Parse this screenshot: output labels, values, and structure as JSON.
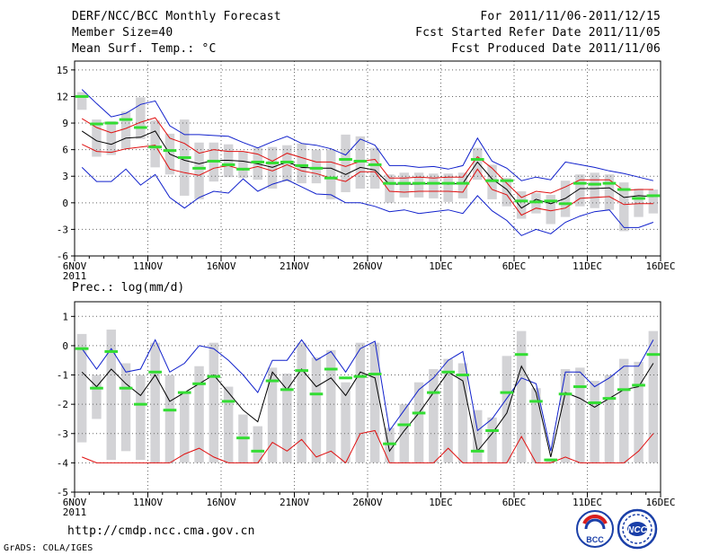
{
  "header": {
    "title": "DERF/NCC/BCC Monthly Forecast",
    "member_size": "Member Size=40",
    "variable": "Mean Surf. Temp.: °C",
    "forecast_period": "For 2011/11/06-2011/12/15",
    "refer_date": "Fcst Started Refer Date 2011/11/05",
    "produced_date": "Fcst Produced Date 2011/11/06"
  },
  "footer": {
    "url": "http://cmdp.ncc.cma.gov.cn",
    "grads": "GrADS: COLA/IGES"
  },
  "logos": {
    "left": "BCC",
    "right": "NCC"
  },
  "colors": {
    "box": "#d3d3d6",
    "mean": "#000000",
    "spread": "#e01010",
    "extreme": "#1020cc",
    "median": "#33dd33",
    "grid": "#666666"
  },
  "chart_data": [
    {
      "type": "line",
      "title": "Mean Surf. Temp.: °C",
      "x": [
        "6NOV",
        "7NOV",
        "8NOV",
        "9NOV",
        "10NOV",
        "11NOV",
        "12NOV",
        "13NOV",
        "14NOV",
        "15NOV",
        "16NOV",
        "17NOV",
        "18NOV",
        "19NOV",
        "20NOV",
        "21NOV",
        "22NOV",
        "23NOV",
        "24NOV",
        "25NOV",
        "26NOV",
        "27NOV",
        "28NOV",
        "29NOV",
        "30NOV",
        "1DEC",
        "2DEC",
        "3DEC",
        "4DEC",
        "5DEC",
        "6DEC",
        "7DEC",
        "8DEC",
        "9DEC",
        "10DEC",
        "11DEC",
        "12DEC",
        "13DEC",
        "14DEC",
        "15DEC"
      ],
      "xticks": [
        "6NOV",
        "11NOV",
        "16NOV",
        "21NOV",
        "26NOV",
        "1DEC",
        "6DEC",
        "11DEC",
        "16DEC"
      ],
      "xtick_index": [
        0,
        5,
        10,
        15,
        20,
        25,
        30,
        35,
        40
      ],
      "year_label": "2011",
      "ylim": [
        -6,
        16
      ],
      "yticks": [
        15,
        12,
        9,
        6,
        3,
        0,
        -3,
        -6
      ],
      "series": [
        {
          "name": "max",
          "values": [
            4,
            2.4,
            2.4,
            3.8,
            2,
            3.2,
            0.6,
            -0.6,
            0.6,
            1.3,
            1.1,
            2.7,
            1.3,
            2.1,
            2.6,
            1.8,
            1,
            0.9,
            0,
            0,
            -0.4,
            -1,
            -0.8,
            -1.2,
            -1,
            -0.8,
            -1.2,
            0.8,
            -0.9,
            -2,
            -3.7,
            -3,
            -3.5,
            -2.2,
            -1.5,
            -1,
            -0.8,
            -2.8,
            -2.8,
            -2.2
          ]
        },
        {
          "name": "spread_low",
          "values": [
            6.6,
            5.8,
            5.7,
            6.1,
            6.3,
            6.5,
            3.8,
            3.4,
            3.1,
            3.9,
            4.2,
            3.7,
            4.1,
            3.6,
            4.3,
            3.6,
            3.3,
            2.8,
            2.4,
            3.5,
            3.5,
            1.3,
            1.2,
            1.3,
            1.3,
            1.3,
            1.2,
            3.8,
            1.5,
            0.9,
            -1.4,
            -0.6,
            -0.9,
            -0.6,
            0.5,
            0.6,
            0.7,
            -0.2,
            -0.1,
            -0.1
          ]
        },
        {
          "name": "mean",
          "values": [
            8.1,
            7,
            6.6,
            7.3,
            7.4,
            8.1,
            5.5,
            4.8,
            4.4,
            4.8,
            4.8,
            4.7,
            4.4,
            4,
            4.6,
            4,
            3.9,
            3.9,
            3.2,
            4,
            3.7,
            2.1,
            2.1,
            2.1,
            2.2,
            2.1,
            2.2,
            4.6,
            2.7,
            1.5,
            -0.6,
            0.4,
            -0.1,
            0.5,
            1.6,
            1.6,
            1.7,
            0.6,
            0.8,
            0.7
          ]
        },
        {
          "name": "spread_high",
          "values": [
            9.5,
            8.5,
            7.9,
            8.4,
            9.1,
            9.6,
            7.3,
            6.7,
            5.6,
            6,
            5.8,
            5.8,
            5.5,
            4.7,
            5.6,
            5.1,
            4.6,
            4.6,
            4.1,
            4.7,
            4.9,
            2.8,
            2.8,
            2.9,
            2.8,
            2.9,
            2.9,
            5.2,
            3.9,
            2.2,
            0.6,
            1.3,
            1.1,
            1.8,
            2.6,
            2.6,
            2.6,
            1.4,
            1.5,
            1.5
          ]
        },
        {
          "name": "min",
          "values": [
            12.8,
            11.2,
            9.7,
            10.1,
            11.1,
            11.5,
            8.7,
            7.7,
            7.7,
            7.6,
            7.5,
            6.8,
            6.2,
            6.9,
            7.5,
            6.7,
            6.5,
            6.1,
            5.4,
            7.2,
            6.5,
            4.2,
            4.2,
            4,
            4.1,
            3.8,
            4.2,
            7.3,
            4.7,
            3.9,
            2.5,
            2.9,
            2.6,
            4.6,
            4.3,
            4,
            3.6,
            3.3,
            2.9,
            2.5
          ]
        },
        {
          "name": "median",
          "values": [
            12,
            8.9,
            9,
            9.4,
            8.5,
            6.3,
            5.9,
            5.1,
            3.9,
            4.7,
            4.3,
            3.8,
            4.6,
            4.5,
            4.6,
            4.2,
            3.9,
            2.8,
            4.9,
            4.7,
            4.3,
            2.2,
            2.2,
            2.2,
            2.2,
            2.2,
            2.2,
            4.9,
            2.5,
            2.5,
            0.2,
            0.1,
            0.2,
            -0.1,
            2.2,
            2.1,
            2.2,
            1.5,
            0.5,
            0.8
          ]
        },
        {
          "name": "box_low",
          "values": [
            10.5,
            5.2,
            5.4,
            6.1,
            7.2,
            4,
            3.2,
            0.8,
            0.4,
            2.4,
            2.9,
            2.8,
            2.6,
            1.6,
            2.4,
            2.2,
            2.2,
            0.4,
            1.2,
            1.6,
            1.6,
            0,
            0.6,
            0.6,
            0.5,
            0.1,
            0.5,
            2.6,
            0.4,
            -0.4,
            -1.8,
            -1.2,
            -2.4,
            -1.6,
            -0.4,
            -0.6,
            -0.8,
            -3.2,
            -1.6,
            -1.2
          ]
        },
        {
          "name": "box_high",
          "values": [
            12.5,
            9.4,
            9.2,
            10.3,
            11.9,
            9.3,
            7.8,
            9.4,
            6.8,
            6.8,
            6.6,
            5.8,
            6.2,
            6.3,
            6.5,
            6.7,
            6,
            6,
            7.7,
            7.5,
            6.2,
            3.2,
            3.4,
            3.4,
            3.3,
            3.3,
            3.4,
            6.2,
            4.3,
            2.8,
            1.3,
            1.1,
            0.9,
            2.5,
            3.2,
            3.4,
            3.2,
            2.3,
            1.6,
            1.5
          ]
        }
      ]
    },
    {
      "type": "line",
      "title": "Prec.: log(mm/d)",
      "x": [
        "6NOV",
        "7NOV",
        "8NOV",
        "9NOV",
        "10NOV",
        "11NOV",
        "12NOV",
        "13NOV",
        "14NOV",
        "15NOV",
        "16NOV",
        "17NOV",
        "18NOV",
        "19NOV",
        "20NOV",
        "21NOV",
        "22NOV",
        "23NOV",
        "24NOV",
        "25NOV",
        "26NOV",
        "27NOV",
        "28NOV",
        "29NOV",
        "30NOV",
        "1DEC",
        "2DEC",
        "3DEC",
        "4DEC",
        "5DEC",
        "6DEC",
        "7DEC",
        "8DEC",
        "9DEC",
        "10DEC",
        "11DEC",
        "12DEC",
        "13DEC",
        "14DEC",
        "15DEC"
      ],
      "xticks": [
        "6NOV",
        "11NOV",
        "16NOV",
        "21NOV",
        "26NOV",
        "1DEC",
        "6DEC",
        "11DEC",
        "16DEC"
      ],
      "xtick_index": [
        0,
        5,
        10,
        15,
        20,
        25,
        30,
        35,
        40
      ],
      "year_label": "2011",
      "ylim": [
        -5,
        1.5
      ],
      "yticks": [
        1,
        0,
        -1,
        -2,
        -3,
        -4,
        -5
      ],
      "series": [
        {
          "name": "max",
          "values": [
            -0.1,
            -0.8,
            -0.1,
            -0.9,
            -0.8,
            0.2,
            -0.9,
            -0.6,
            0,
            -0.1,
            -0.5,
            -1,
            -1.6,
            -0.5,
            -0.5,
            0.2,
            -0.5,
            -0.2,
            -0.9,
            -0.1,
            0.15,
            -2.9,
            -2.2,
            -1.5,
            -1.1,
            -0.5,
            -0.2,
            -2.9,
            -2.5,
            -1.8,
            -1.1,
            -1.3,
            -3.6,
            -0.9,
            -0.9,
            -1.4,
            -1.1,
            -0.7,
            -0.7,
            0.2
          ]
        },
        {
          "name": "mean",
          "values": [
            -0.9,
            -1.4,
            -0.8,
            -1.3,
            -1.7,
            -1.0,
            -1.9,
            -1.6,
            -1.3,
            -1.0,
            -1.6,
            -2.2,
            -2.6,
            -0.9,
            -1.5,
            -0.8,
            -1.4,
            -1.1,
            -1.7,
            -0.9,
            -1.1,
            -3.6,
            -2.9,
            -2.3,
            -1.6,
            -0.9,
            -1.2,
            -3.6,
            -3.0,
            -2.3,
            -0.7,
            -1.6,
            -3.8,
            -1.6,
            -1.8,
            -2.1,
            -1.8,
            -1.5,
            -1.4,
            -0.6
          ]
        },
        {
          "name": "spread",
          "values": [
            -3.8,
            -4.0,
            -4.0,
            -4.0,
            -4.0,
            -4.0,
            -4.0,
            -3.7,
            -3.5,
            -3.8,
            -4.0,
            -4.0,
            -4.0,
            -3.3,
            -3.6,
            -3.2,
            -3.8,
            -3.6,
            -4.0,
            -3.0,
            -2.9,
            -4.0,
            -4.0,
            -4.0,
            -4.0,
            -3.5,
            -4.0,
            -4.0,
            -4.0,
            -4.0,
            -3.1,
            -4.0,
            -4.0,
            -3.8,
            -4.0,
            -4.0,
            -4.0,
            -4.0,
            -3.6,
            -3.0
          ]
        },
        {
          "name": "median",
          "values": [
            -0.1,
            -1.45,
            -0.2,
            -1.45,
            -2.0,
            -0.9,
            -2.2,
            -1.6,
            -1.3,
            -1.05,
            -1.9,
            -3.15,
            -3.6,
            -1.2,
            -1.5,
            -0.85,
            -1.65,
            -0.8,
            -1.1,
            -1.05,
            -0.97,
            -3.35,
            -2.7,
            -2.3,
            -1.6,
            -0.9,
            -1.0,
            -3.6,
            -2.9,
            -1.6,
            -0.3,
            -1.9,
            -3.9,
            -1.65,
            -1.4,
            -1.95,
            -1.8,
            -1.5,
            -1.35,
            -0.3
          ]
        },
        {
          "name": "box_low",
          "values": [
            -3.3,
            -2.5,
            -3.9,
            -3.6,
            -3.9,
            -4.0,
            -4.0,
            -4.0,
            -4.0,
            -4.0,
            -4.0,
            -4.0,
            -4.0,
            -4.0,
            -4.0,
            -4.0,
            -4.0,
            -4.0,
            -4.0,
            -4.0,
            -4.0,
            -4.0,
            -4.0,
            -4.0,
            -4.0,
            -4.0,
            -4.0,
            -4.0,
            -4.0,
            -4.0,
            -4.0,
            -4.0,
            -4.0,
            -4.0,
            -4.0,
            -4.0,
            -4.0,
            -4.0,
            -4.0,
            -4.0
          ]
        },
        {
          "name": "box_high",
          "values": [
            0.4,
            -1.0,
            0.55,
            -0.6,
            -1.0,
            0.1,
            -1.0,
            -1.6,
            -0.7,
            0.1,
            -1.4,
            -2.35,
            -2.75,
            -0.75,
            -0.95,
            0.1,
            -0.4,
            -0.15,
            -1.25,
            0.1,
            0.1,
            -2.8,
            -2.0,
            -1.25,
            -0.8,
            -0.45,
            -0.6,
            -2.2,
            -2.45,
            -0.35,
            0.5,
            -1.45,
            -3.85,
            -0.8,
            -0.75,
            -1.2,
            -1.0,
            -0.45,
            -0.55,
            0.5
          ]
        }
      ]
    }
  ]
}
